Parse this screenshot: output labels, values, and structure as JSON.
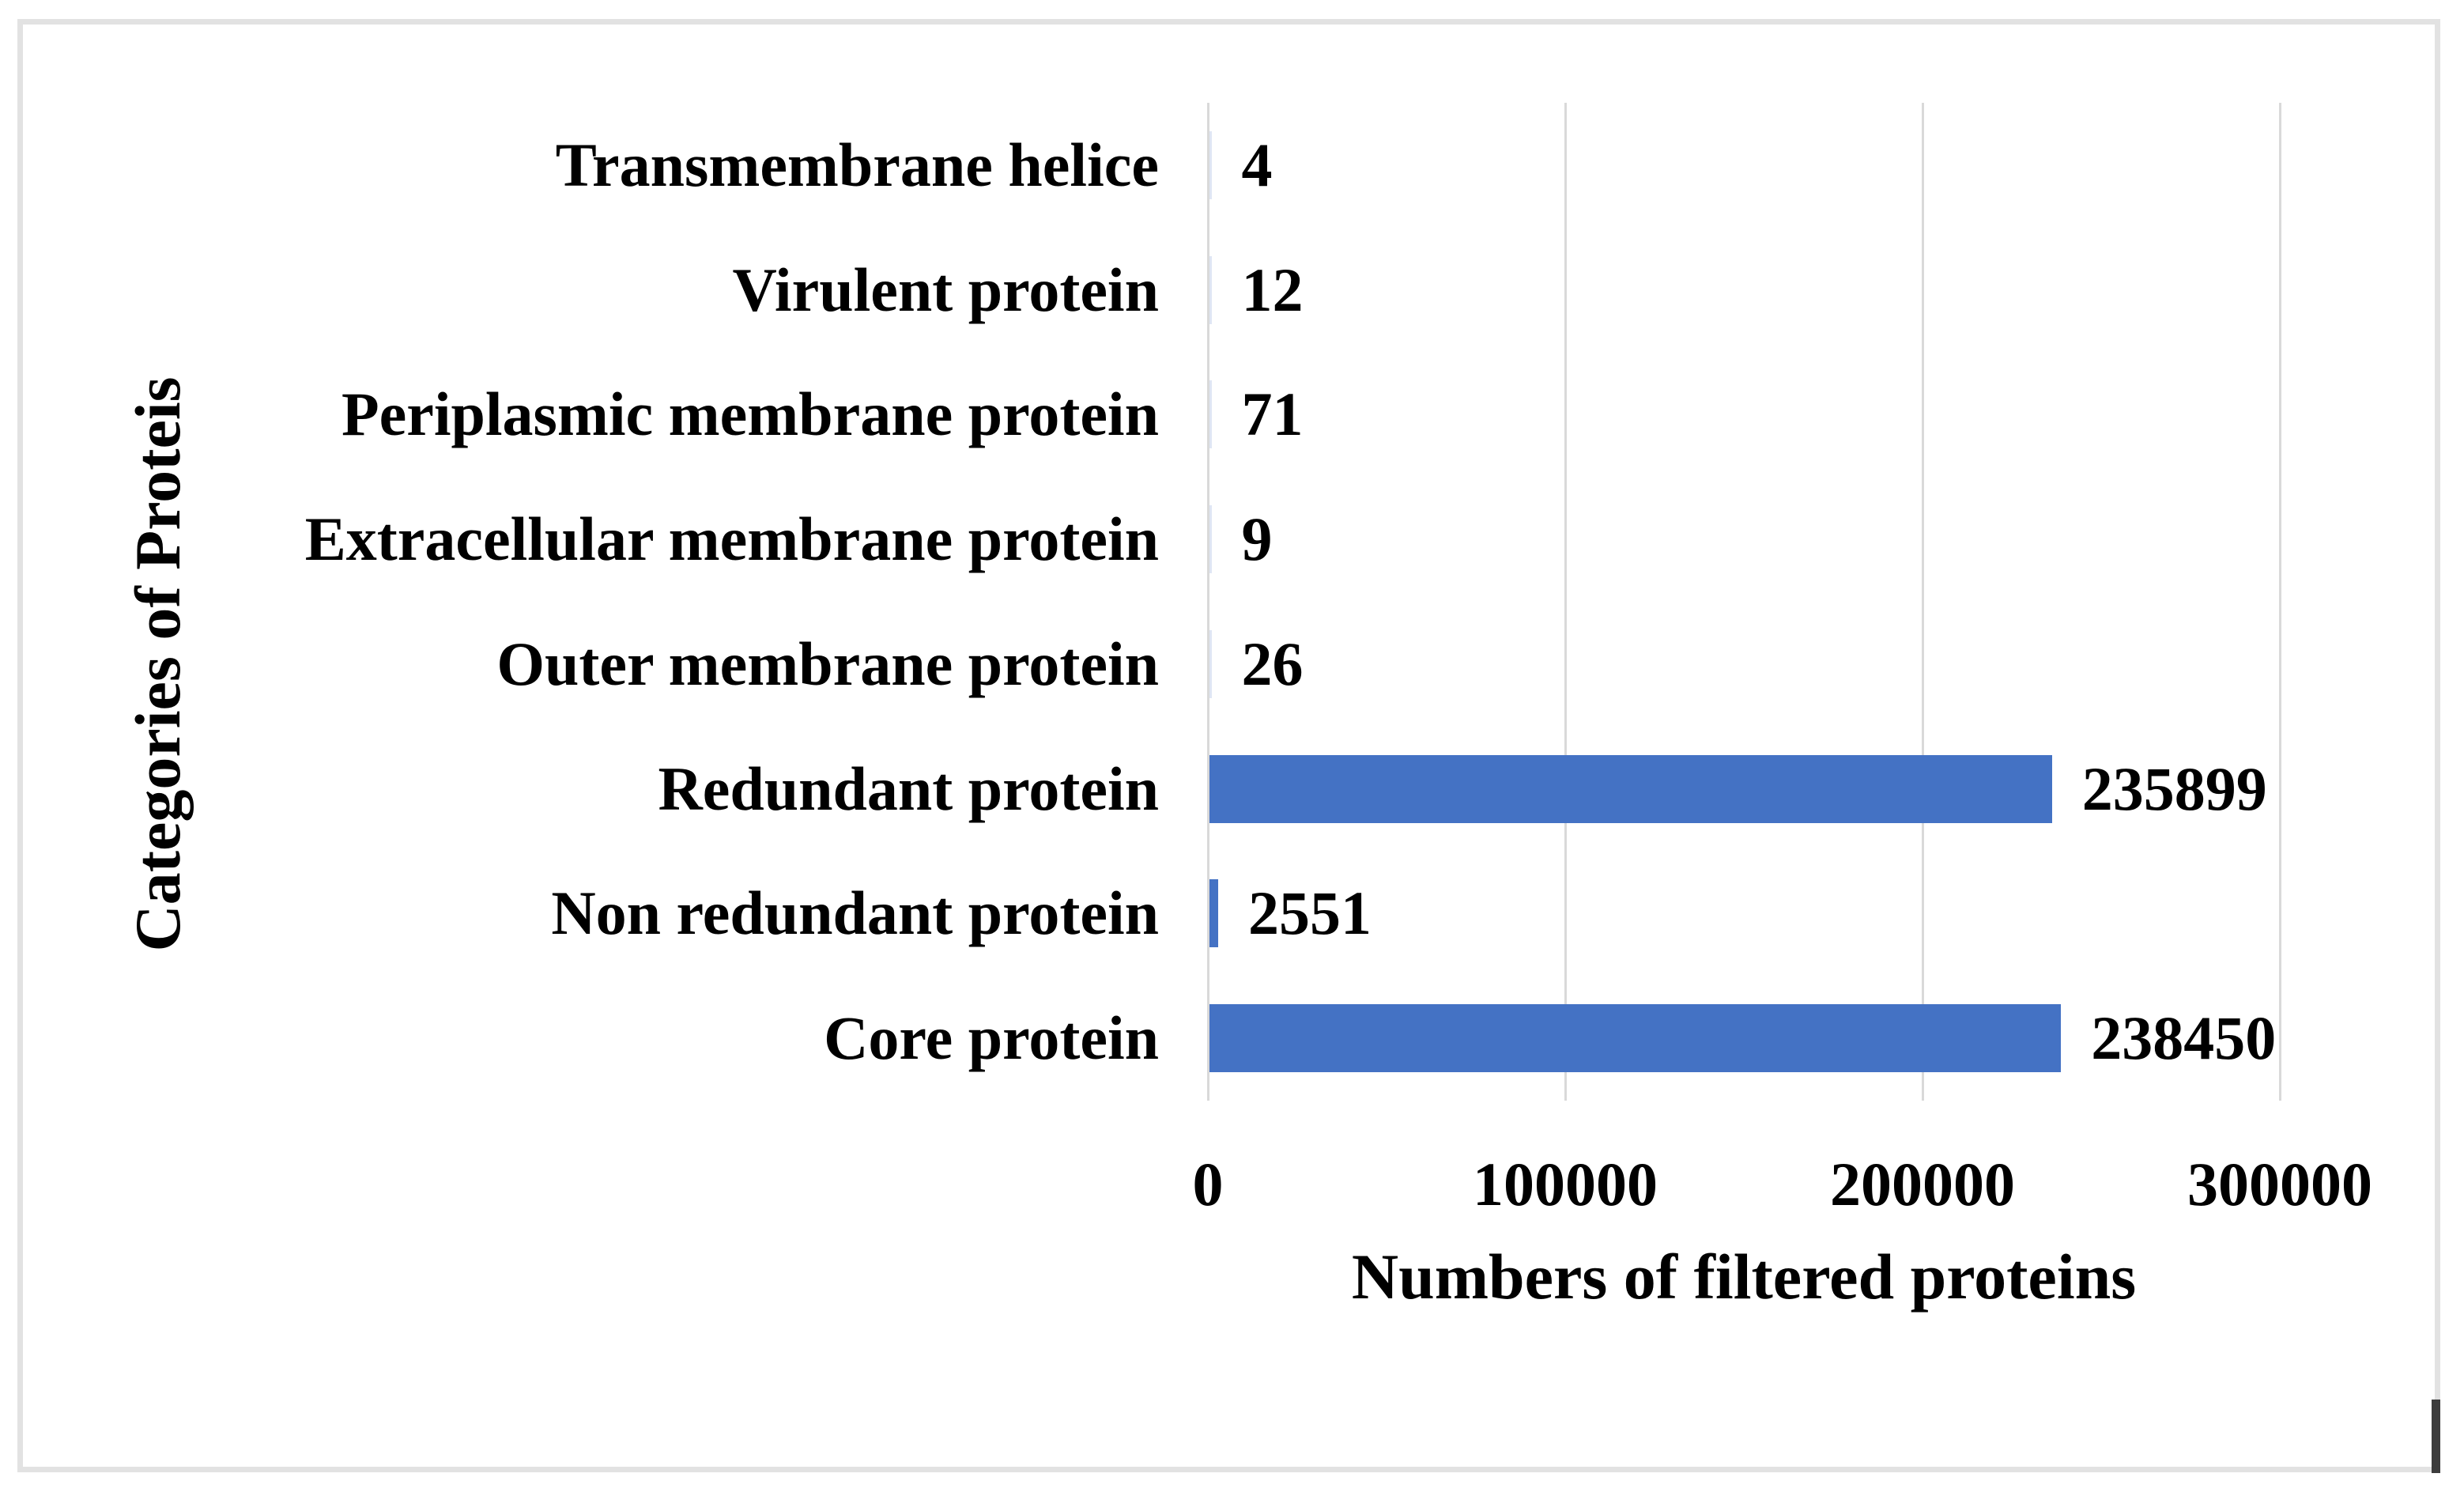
{
  "chart_data": {
    "type": "bar",
    "orientation": "horizontal",
    "title": "",
    "xlabel": "Numbers of filtered proteins",
    "ylabel": "Categories of Proteis",
    "categories": [
      "Transmembrane helice",
      "Virulent protein",
      "Periplasmic membrane protein",
      "Extracellular membrane protein",
      "Outer membrane protein",
      "Redundant protein",
      "Non redundant protein",
      "Core protein"
    ],
    "values": [
      4,
      12,
      71,
      9,
      26,
      235899,
      2551,
      238450
    ],
    "data_labels": [
      "4",
      "12",
      "71",
      "9",
      "26",
      "235899",
      "2551",
      "238450"
    ],
    "x_ticks": [
      0,
      100000,
      200000,
      300000
    ],
    "x_tick_labels": [
      "0",
      "100000",
      "200000",
      "300000"
    ],
    "xlim": [
      0,
      300000
    ],
    "grid": "vertical-gridlines",
    "legend": "none",
    "bar_color": "#4472C4",
    "gridline_color": "#D9D9D9",
    "text_color": "#000000"
  },
  "figure": {
    "background": "#FFFFFF",
    "border_color": "#E2E2E2",
    "right_edge_mark_color": "#3C3C3C"
  }
}
